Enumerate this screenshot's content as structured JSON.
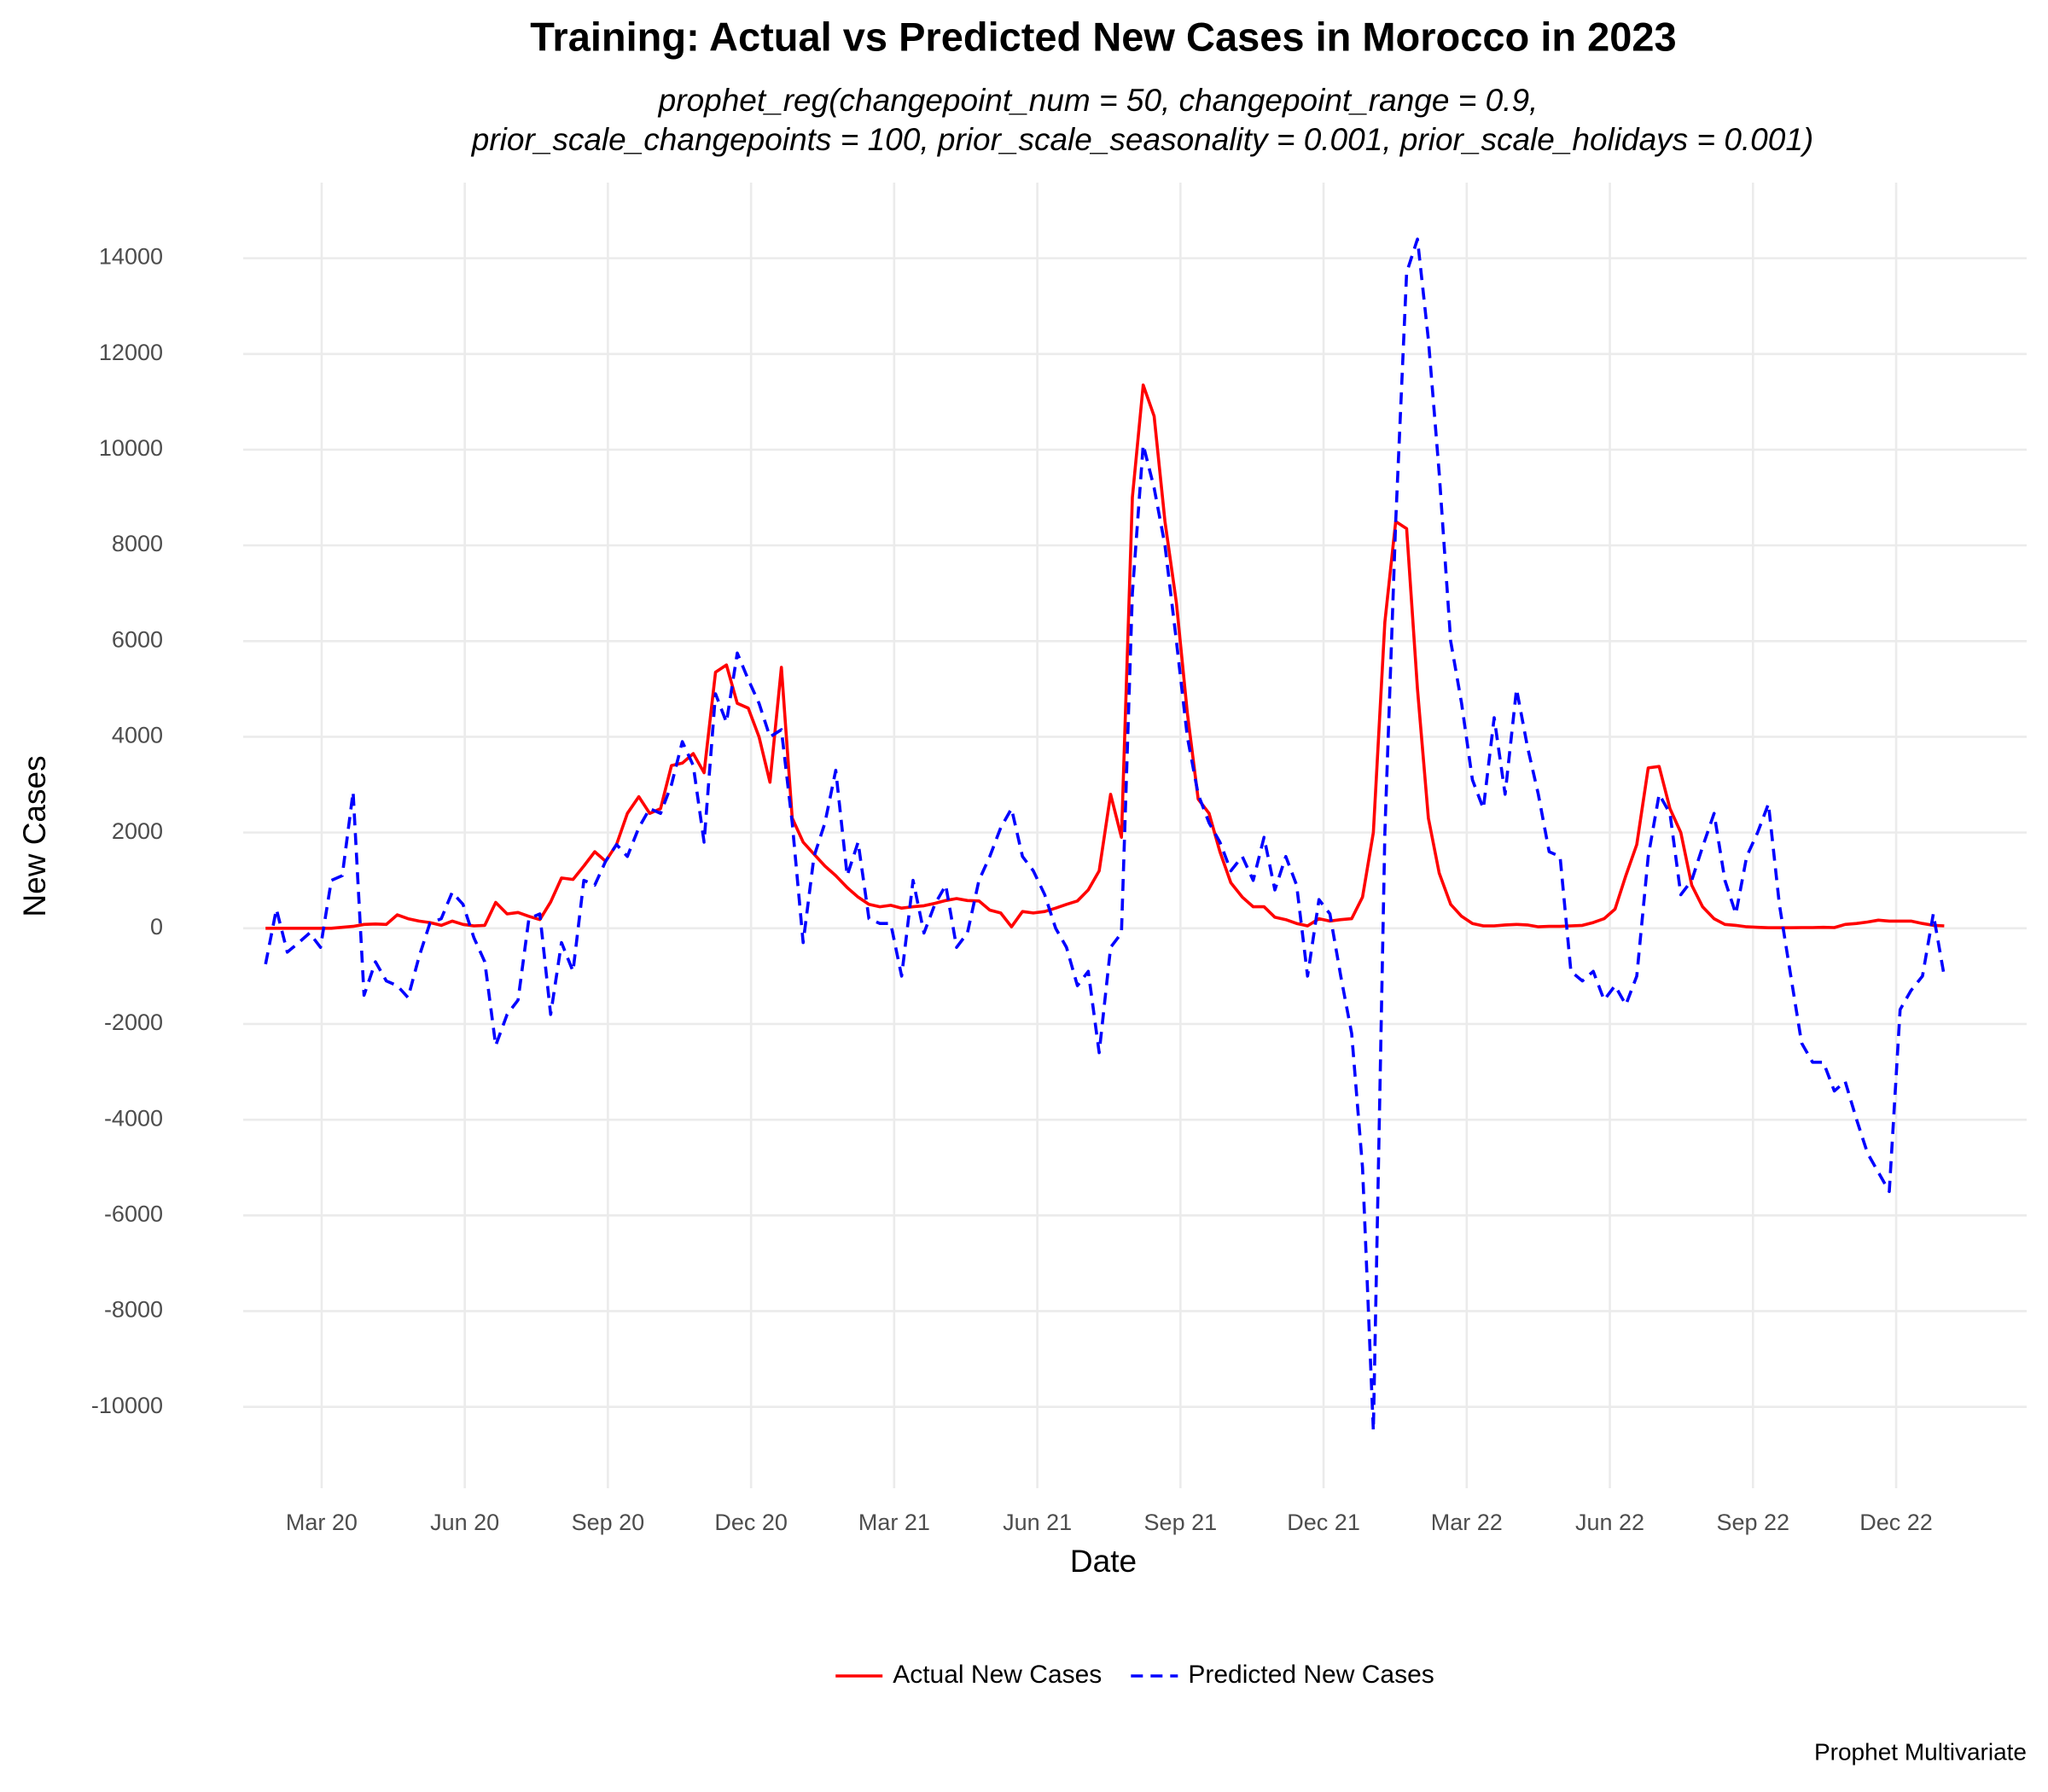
{
  "chart_data": {
    "type": "line",
    "title": "Training: Actual vs Predicted New Cases in Morocco in 2023",
    "subtitle": [
      "prophet_reg(changepoint_num = 50, changepoint_range = 0.9,",
      "prior_scale_changepoints = 100, prior_scale_seasonality = 0.001, prior_scale_holidays = 0.001)"
    ],
    "x_label": "Date",
    "y_label": "New Cases",
    "caption": "Prophet Multivariate",
    "legend": "bottom",
    "grid": true,
    "xlim": [
      2020.03,
      2023.145
    ],
    "ylim": [
      -11700,
      15580
    ],
    "xticks": [
      {
        "value": 2020.167,
        "label": "Mar 20"
      },
      {
        "value": 2020.417,
        "label": "Jun 20"
      },
      {
        "value": 2020.667,
        "label": "Sep 20"
      },
      {
        "value": 2020.917,
        "label": "Dec 20"
      },
      {
        "value": 2021.167,
        "label": "Mar 21"
      },
      {
        "value": 2021.417,
        "label": "Jun 21"
      },
      {
        "value": 2021.667,
        "label": "Sep 21"
      },
      {
        "value": 2021.917,
        "label": "Dec 21"
      },
      {
        "value": 2022.167,
        "label": "Mar 22"
      },
      {
        "value": 2022.417,
        "label": "Jun 22"
      },
      {
        "value": 2022.667,
        "label": "Sep 22"
      },
      {
        "value": 2022.917,
        "label": "Dec 22"
      }
    ],
    "yticks": [
      -10000,
      -8000,
      -6000,
      -4000,
      -2000,
      0,
      2000,
      4000,
      6000,
      8000,
      10000,
      12000,
      14000
    ],
    "x": [
      2020.069,
      2020.088,
      2020.107,
      2020.127,
      2020.146,
      2020.165,
      2020.184,
      2020.203,
      2020.222,
      2020.241,
      2020.261,
      2020.28,
      2020.299,
      2020.318,
      2020.337,
      2020.356,
      2020.376,
      2020.395,
      2020.414,
      2020.433,
      2020.452,
      2020.471,
      2020.491,
      2020.51,
      2020.529,
      2020.548,
      2020.567,
      2020.586,
      2020.606,
      2020.625,
      2020.644,
      2020.663,
      2020.682,
      2020.701,
      2020.721,
      2020.74,
      2020.759,
      2020.778,
      2020.797,
      2020.816,
      2020.835,
      2020.855,
      2020.874,
      2020.893,
      2020.912,
      2020.931,
      2020.95,
      2020.97,
      2020.989,
      2021.008,
      2021.027,
      2021.046,
      2021.065,
      2021.085,
      2021.104,
      2021.123,
      2021.142,
      2021.161,
      2021.18,
      2021.2,
      2021.219,
      2021.238,
      2021.257,
      2021.276,
      2021.295,
      2021.315,
      2021.334,
      2021.353,
      2021.372,
      2021.391,
      2021.41,
      2021.43,
      2021.449,
      2021.468,
      2021.487,
      2021.506,
      2021.525,
      2021.545,
      2021.564,
      2021.583,
      2021.602,
      2021.621,
      2021.64,
      2021.66,
      2021.679,
      2021.698,
      2021.717,
      2021.736,
      2021.755,
      2021.775,
      2021.794,
      2021.813,
      2021.832,
      2021.851,
      2021.87,
      2021.889,
      2021.909,
      2021.928,
      2021.947,
      2021.966,
      2021.985,
      2022.004,
      2022.024,
      2022.043,
      2022.062,
      2022.081,
      2022.1,
      2022.119,
      2022.139,
      2022.158,
      2022.177,
      2022.196,
      2022.215,
      2022.234,
      2022.254,
      2022.273,
      2022.292,
      2022.311,
      2022.33,
      2022.349,
      2022.369,
      2022.388,
      2022.407,
      2022.426,
      2022.445,
      2022.464,
      2022.484,
      2022.503,
      2022.522,
      2022.541,
      2022.56,
      2022.579,
      2022.599,
      2022.618,
      2022.637,
      2022.656,
      2022.675,
      2022.694,
      2022.713,
      2022.733,
      2022.752,
      2022.771,
      2022.79,
      2022.809,
      2022.828,
      2022.848,
      2022.867,
      2022.886,
      2022.905,
      2022.924,
      2022.943,
      2022.963,
      2022.982,
      2023.001
    ],
    "series": [
      {
        "name": "Actual New Cases",
        "color": "#ff0000",
        "dash": "solid",
        "values": [
          0,
          0,
          0,
          0,
          0,
          0,
          0,
          20,
          40,
          80,
          90,
          80,
          280,
          200,
          150,
          120,
          60,
          150,
          80,
          50,
          60,
          540,
          300,
          330,
          250,
          180,
          550,
          1050,
          1020,
          1300,
          1600,
          1400,
          1750,
          2400,
          2750,
          2400,
          2500,
          3400,
          3450,
          3650,
          3250,
          5350,
          5500,
          4700,
          4600,
          4000,
          3050,
          5450,
          2300,
          1800,
          1550,
          1300,
          1100,
          850,
          650,
          500,
          450,
          480,
          420,
          450,
          470,
          520,
          580,
          620,
          580,
          570,
          380,
          320,
          30,
          350,
          320,
          350,
          420,
          500,
          570,
          800,
          1200,
          2800,
          1900,
          9000,
          11350,
          10700,
          8500,
          6800,
          4500,
          2700,
          2400,
          1600,
          950,
          650,
          450,
          450,
          230,
          180,
          100,
          50,
          200,
          150,
          180,
          200,
          650,
          2000,
          6400,
          8500,
          8350,
          5000,
          2300,
          1150,
          500,
          250,
          100,
          50,
          50,
          70,
          80,
          70,
          30,
          40,
          40,
          50,
          60,
          120,
          200,
          400,
          1100,
          1750,
          3350,
          3380,
          2500,
          2000,
          900,
          450,
          200,
          80,
          60,
          30,
          20,
          10,
          10,
          10,
          15,
          15,
          20,
          15,
          80,
          100,
          130,
          170,
          150,
          150,
          150,
          100,
          60,
          50
        ]
      },
      {
        "name": "Predicted New Cases",
        "color": "#0000ff",
        "dash": "dashed",
        "values": [
          -750,
          400,
          -500,
          -300,
          -100,
          -400,
          1000,
          1100,
          2850,
          -1400,
          -700,
          -1100,
          -1200,
          -1450,
          -600,
          100,
          200,
          750,
          500,
          -200,
          -700,
          -2450,
          -1800,
          -1500,
          200,
          300,
          -1800,
          -300,
          -900,
          1000,
          900,
          1400,
          1750,
          1500,
          2100,
          2500,
          2400,
          3000,
          3900,
          3400,
          1800,
          4900,
          4300,
          5750,
          5200,
          4700,
          4000,
          4150,
          2200,
          -300,
          1500,
          2200,
          3300,
          1100,
          1800,
          200,
          100,
          100,
          -1000,
          1000,
          -100,
          500,
          900,
          -400,
          -100,
          1000,
          1500,
          2100,
          2500,
          1500,
          1200,
          700,
          0,
          -400,
          -1200,
          -900,
          -2600,
          -400,
          -100,
          7000,
          10100,
          9200,
          8000,
          6000,
          4000,
          2800,
          2200,
          1800,
          1200,
          1500,
          1000,
          1900,
          800,
          1500,
          900,
          -1000,
          600,
          300,
          -1000,
          -2200,
          -5000,
          -10500,
          2000,
          8500,
          13700,
          14400,
          12300,
          9500,
          6000,
          4700,
          3100,
          2500,
          4400,
          2800,
          5000,
          3800,
          2800,
          1600,
          1500,
          -900,
          -1100,
          -900,
          -1500,
          -1200,
          -1600,
          -1000,
          1500,
          2800,
          2400,
          700,
          1000,
          1700,
          2400,
          1000,
          300,
          1500,
          2000,
          2600,
          500,
          -1000,
          -2400,
          -2800,
          -2800,
          -3400,
          -3200,
          -4000,
          -4700,
          -5100,
          -5500,
          -1700,
          -1300,
          -1000,
          300,
          -1000
        ]
      }
    ]
  }
}
